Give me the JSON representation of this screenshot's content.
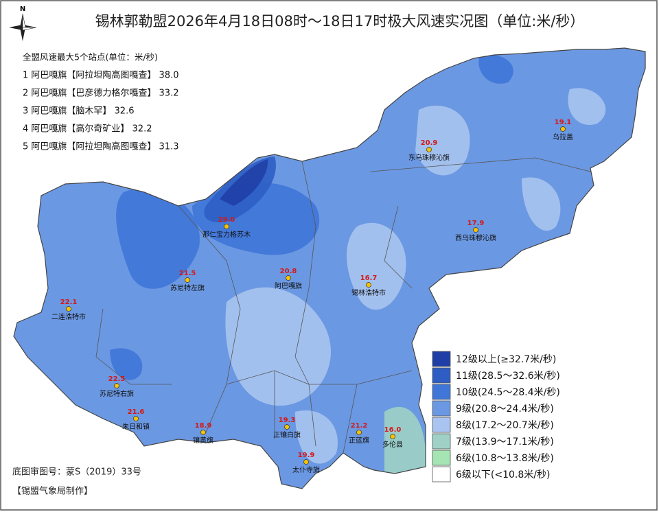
{
  "title": "锡林郭勒盟2026年4月18日08时～18日17时极大风速实况图（单位:米/秒）",
  "compass": "N",
  "top_stations": {
    "heading": "全盟风速最大5个站点(单位：米/秒)",
    "items": [
      "1 阿巴嘎旗【阿拉坦陶高图嘎查】 38.0",
      "2 阿巴嘎旗【巴彦德力格尔嘎查】 33.2",
      "3 阿巴嘎旗【脑木罕】 32.6",
      "4 阿巴嘎旗【高尔奇矿业】 32.2",
      "5 阿巴嘎旗【阿拉坦陶高图嘎查】 31.3"
    ]
  },
  "stations": [
    {
      "name": "那仁宝力格苏木",
      "value": "29.0"
    },
    {
      "name": "阿巴嘎旗",
      "value": "20.8"
    },
    {
      "name": "苏尼特左旗",
      "value": "21.5"
    },
    {
      "name": "二连浩特市",
      "value": "22.1"
    },
    {
      "name": "锡林浩特市",
      "value": "16.7"
    },
    {
      "name": "东乌珠穆沁旗",
      "value": "20.9"
    },
    {
      "name": "乌拉盖",
      "value": "19.1"
    },
    {
      "name": "西乌珠穆沁旗",
      "value": "17.9"
    },
    {
      "name": "苏尼特右旗",
      "value": "22.5"
    },
    {
      "name": "朱日和镇",
      "value": "21.6"
    },
    {
      "name": "镶黄旗",
      "value": "18.9"
    },
    {
      "name": "正镶白旗",
      "value": "19.3"
    },
    {
      "name": "正蓝旗",
      "value": "21.2"
    },
    {
      "name": "多伦县",
      "value": "16.0"
    },
    {
      "name": "太仆寺旗",
      "value": "19.9"
    }
  ],
  "legend": [
    {
      "label": "12级以上(≥32.7米/秒)",
      "color": "#1f3fa6"
    },
    {
      "label": "11级(28.5～32.6米/秒)",
      "color": "#2e5ec4"
    },
    {
      "label": "10级(24.5～28.4米/秒)",
      "color": "#3f76d8"
    },
    {
      "label": "9级(20.8～24.4米/秒)",
      "color": "#6b98e2"
    },
    {
      "label": "8级(17.2～20.7米/秒)",
      "color": "#a9c4f0"
    },
    {
      "label": "7级(13.9～17.1米/秒)",
      "color": "#9fd1c6"
    },
    {
      "label": "6级(10.8～13.8米/秒)",
      "color": "#a5e5b3"
    },
    {
      "label": "6级以下(<10.8米/秒)",
      "color": "#ffffff"
    }
  ],
  "footer": {
    "approval": "底图审图号：蒙S（2019）33号",
    "producer": "【锡盟气象局制作】"
  }
}
